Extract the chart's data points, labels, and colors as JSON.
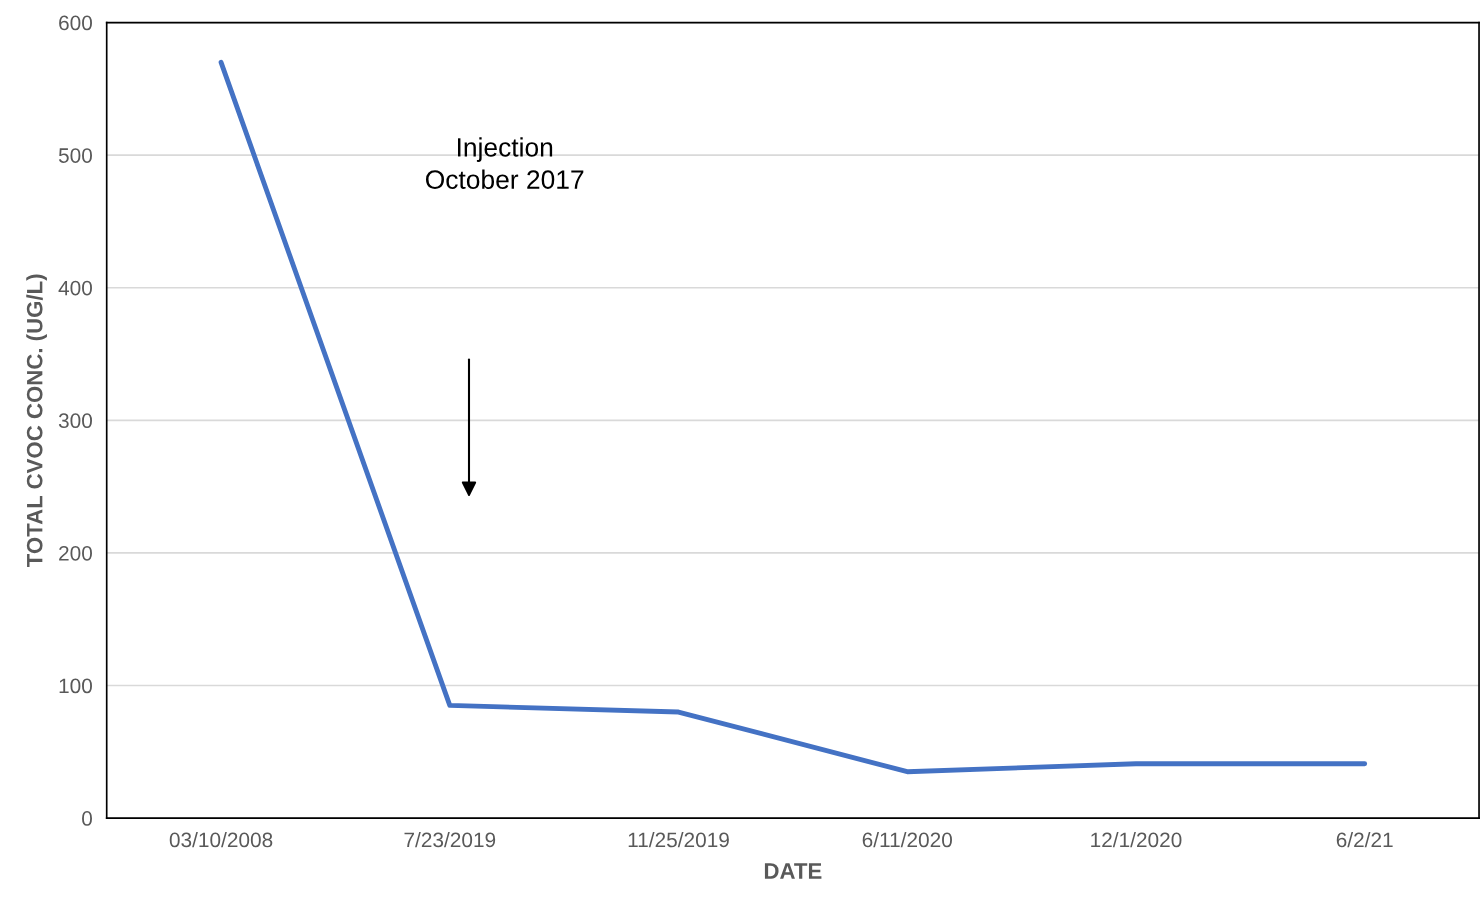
{
  "chart_data": {
    "type": "line",
    "xlabel": "DATE",
    "ylabel": "TOTAL CVOC CONC. (UG/L)",
    "categories": [
      "03/10/2008",
      "7/23/2019",
      "11/25/2019",
      "6/11/2020",
      "12/1/2020",
      "6/2/21"
    ],
    "series": [
      {
        "color": "#4472c4",
        "values": [
          570,
          85,
          80,
          35,
          41,
          41
        ]
      }
    ],
    "ylim": [
      0,
      600
    ],
    "yticks": [
      0,
      100,
      200,
      300,
      400,
      500,
      600
    ],
    "grid": "y",
    "annotations": [
      "Injection\nOctober 2017"
    ]
  }
}
